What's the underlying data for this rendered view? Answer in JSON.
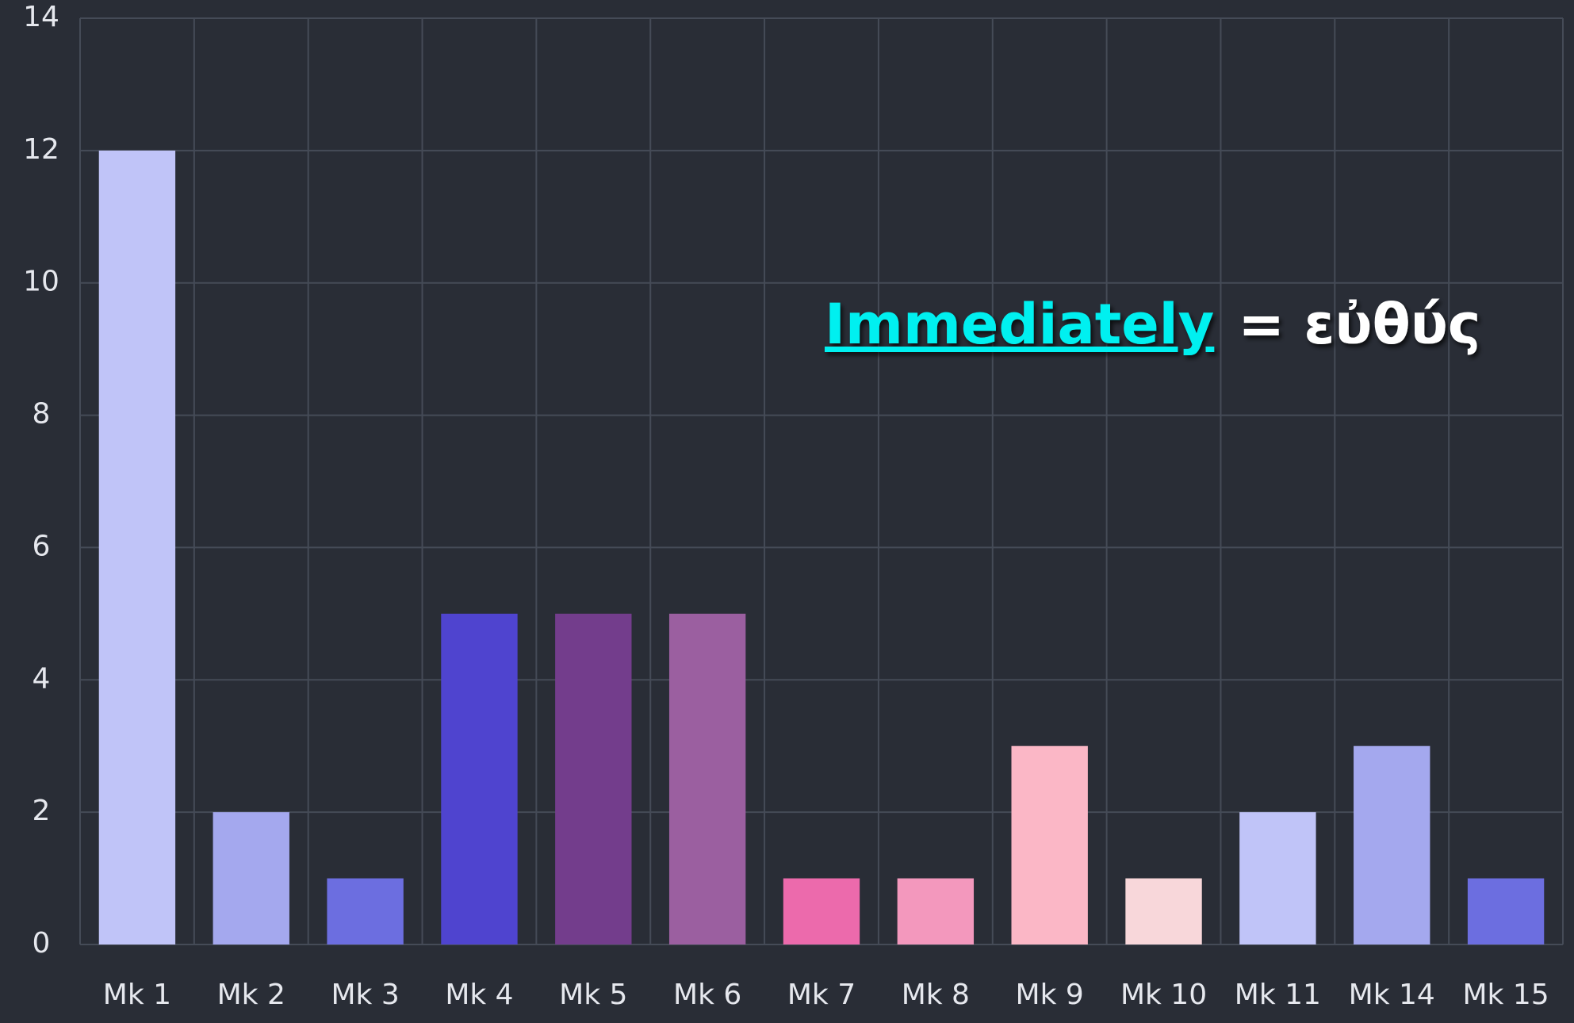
{
  "chart_data": {
    "type": "bar",
    "categories": [
      "Mk 1",
      "Mk 2",
      "Mk 3",
      "Mk 4",
      "Mk 5",
      "Mk 6",
      "Mk 7",
      "Mk 8",
      "Mk 9",
      "Mk 10",
      "Mk 11",
      "Mk 14",
      "Mk 15"
    ],
    "values": [
      12,
      2,
      1,
      5,
      5,
      5,
      1,
      1,
      3,
      1,
      2,
      3,
      1
    ],
    "colors": [
      "#c0c4f8",
      "#a4a8ee",
      "#6c6ee0",
      "#4f44cf",
      "#733d8c",
      "#9b5fa0",
      "#ec6aac",
      "#f398bd",
      "#fbb7c6",
      "#f8d7da",
      "#c0c4f8",
      "#a4a8ee",
      "#6c6ee0"
    ],
    "ylim": [
      0,
      14
    ],
    "yticks": [
      0,
      2,
      4,
      6,
      8,
      10,
      12,
      14
    ],
    "grid": true,
    "annotation": [
      "Immediately",
      "= εὐθύς"
    ]
  }
}
